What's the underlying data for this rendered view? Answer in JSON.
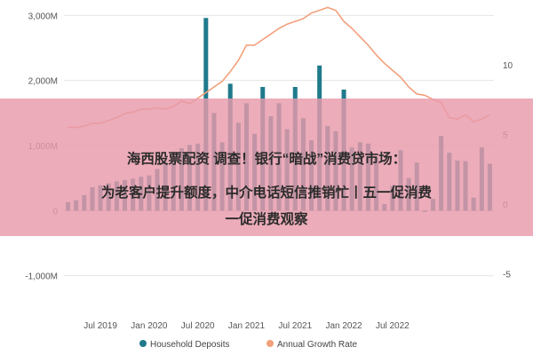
{
  "chart_data": {
    "type": "bar",
    "x_tick_labels": [
      "Jul 2019",
      "Jan 2020",
      "Jul 2020",
      "Jan 2021",
      "Jul 2021",
      "Jan 2022",
      "Jul 2022"
    ],
    "y_left": {
      "range": [
        -1400,
        3100
      ],
      "ticks": [
        -1000,
        0,
        1000,
        2000,
        3000
      ],
      "tick_labels": [
        "-1,000M",
        "0",
        "1,000M",
        "2,000M",
        "3,000M"
      ]
    },
    "y_right": {
      "range": [
        -7,
        14
      ],
      "ticks": [
        -5,
        0,
        5,
        10
      ],
      "tick_labels": [
        "-5",
        "0",
        "5",
        "10"
      ]
    },
    "grid": true,
    "legend_position": "bottom",
    "series": [
      {
        "name": "Household Deposits",
        "type": "bar",
        "axis": "left",
        "color": "#1f7a8c",
        "values": [
          130,
          160,
          240,
          360,
          390,
          420,
          450,
          470,
          490,
          520,
          540,
          640,
          750,
          870,
          960,
          1010,
          1030,
          2960,
          1500,
          1050,
          1950,
          1350,
          1650,
          1180,
          1900,
          1450,
          1650,
          1250,
          1900,
          1420,
          1080,
          2230,
          1300,
          1220,
          1860,
          970,
          1050,
          1030,
          820,
          100,
          380,
          930,
          500,
          740,
          -20,
          180,
          1150,
          890,
          770,
          760,
          200,
          970,
          720
        ]
      },
      {
        "name": "Annual Growth Rate",
        "type": "line",
        "axis": "right",
        "color": "#f2a07b",
        "values": [
          5.5,
          5.5,
          5.6,
          5.8,
          5.8,
          6.0,
          6.2,
          6.5,
          6.6,
          6.8,
          6.8,
          6.9,
          6.8,
          7.0,
          7.4,
          7.2,
          7.6,
          8.0,
          8.4,
          8.8,
          9.5,
          10.3,
          11.4,
          11.4,
          11.8,
          12.2,
          12.6,
          12.9,
          13.1,
          13.3,
          13.7,
          13.9,
          14.1,
          13.9,
          13.1,
          12.6,
          12.0,
          11.4,
          10.7,
          10.1,
          9.6,
          9.1,
          8.4,
          7.9,
          7.8,
          7.5,
          7.3,
          6.2,
          6.1,
          6.4,
          5.9,
          6.1,
          6.4
        ]
      }
    ]
  },
  "overlay": {
    "line1": "海西股票配资 调查！银行“暗战”消费贷市场：",
    "line2": "为老客户提升额度，中介电话短信推销忙丨五一促消费",
    "line3": "一促消费观察",
    "band_color": "#e89aab"
  }
}
